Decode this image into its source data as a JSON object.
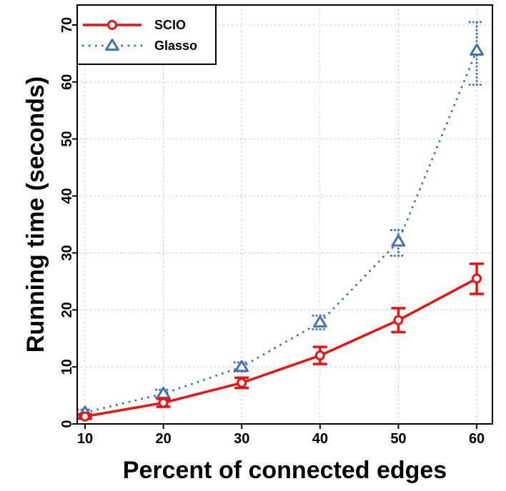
{
  "chart_data": {
    "type": "line",
    "xlabel": "Percent of connected edges",
    "ylabel": "Running time (seconds)",
    "xlim": [
      9,
      62
    ],
    "ylim": [
      0,
      73.5
    ],
    "x_ticks": [
      10,
      20,
      30,
      40,
      50,
      60
    ],
    "y_ticks": [
      0,
      10,
      20,
      30,
      40,
      50,
      60,
      70
    ],
    "grid": true,
    "legend_position": "top-left",
    "series": [
      {
        "name": "SCIO",
        "color": "#ee1111",
        "line_style": "solid",
        "marker": "circle",
        "x": [
          10,
          20,
          30,
          40,
          50,
          60
        ],
        "y": [
          1.3,
          3.7,
          7.2,
          12.0,
          18.2,
          25.5
        ],
        "err_low": [
          0.9,
          3.0,
          6.3,
          10.5,
          16.1,
          22.8
        ],
        "err_high": [
          1.7,
          4.4,
          8.1,
          13.5,
          20.3,
          28.1
        ]
      },
      {
        "name": "Glasso",
        "color": "#3f72b8",
        "line_style": "dotted",
        "marker": "triangle",
        "x": [
          10,
          20,
          30,
          40,
          50,
          60
        ],
        "y": [
          2.0,
          5.3,
          10.0,
          17.8,
          32.0,
          65.5
        ],
        "err_low": [
          1.5,
          4.6,
          9.2,
          16.6,
          29.5,
          59.5
        ],
        "err_high": [
          2.5,
          6.0,
          10.8,
          19.0,
          34.0,
          70.5
        ]
      }
    ]
  }
}
